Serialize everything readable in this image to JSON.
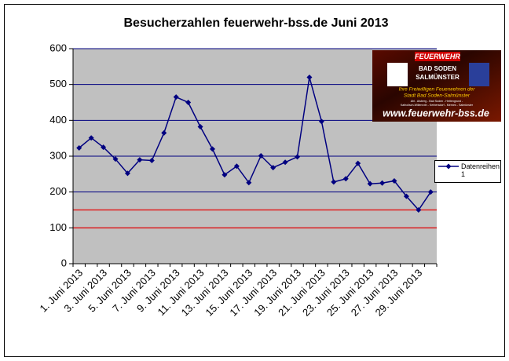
{
  "chart_data": {
    "type": "line",
    "title": "Besucherzahlen feuerwehr-bss.de Juni 2013",
    "categories": [
      "1. Juni 2013",
      null,
      "3. Juni 2013",
      null,
      "5. Juni 2013",
      null,
      "7. Juni 2013",
      null,
      "9. Juni 2013",
      null,
      "11. Juni 2013",
      null,
      "13. Juni 2013",
      null,
      "15. Juni 2013",
      null,
      "17. Juni 2013",
      null,
      "19. Juni 2013",
      null,
      "21. Juni 2013",
      null,
      "23. Juni 2013",
      null,
      "25. Juni 2013",
      null,
      "27. Juni 2013",
      null,
      "29. Juni 2013",
      null
    ],
    "series": [
      {
        "name": "Datenreihen1",
        "color": "#000080",
        "values": [
          323,
          351,
          325,
          292,
          252,
          290,
          288,
          365,
          465,
          450,
          382,
          320,
          248,
          272,
          226,
          301,
          268,
          283,
          298,
          520,
          397,
          228,
          237,
          280,
          223,
          225,
          231,
          188,
          150,
          200
        ]
      }
    ],
    "ylim": [
      0,
      600
    ],
    "yticks": [
      0,
      100,
      200,
      300,
      400,
      500,
      600
    ],
    "grid": true,
    "grid_color": "#000080",
    "plot_background": "#c0c0c0",
    "reference_lines": [
      {
        "value": 150,
        "color": "#e02020"
      },
      {
        "value": 100,
        "color": "#e02020"
      }
    ],
    "legend": "right"
  },
  "logo": {
    "badge": "FEUERWEHR",
    "town1": "BAD SODEN",
    "town2": "SALMÜNSTER",
    "line1": "Ihre Freiwilligen Feuerwehren der",
    "line2": "Stadt Bad Soden-Salmünster",
    "small1": "Ahl - Alsberg - Bad Soden - Hettengrund -",
    "small2": "Katholisch-Willenroth - Kerbersdorf - Mernes - Salmünster",
    "url": "www.feuerwehr-bss.de"
  }
}
